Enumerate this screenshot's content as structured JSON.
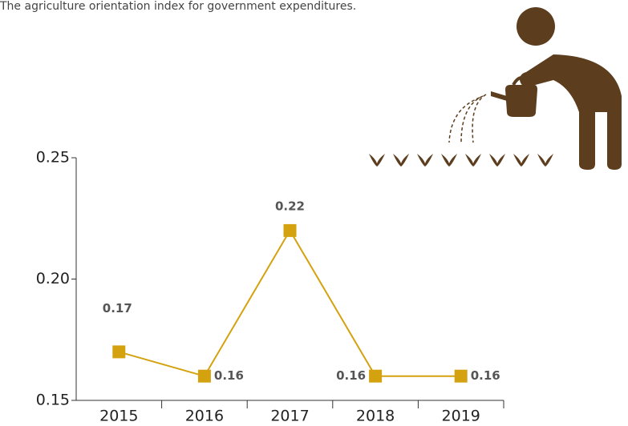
{
  "chart_data": {
    "type": "line",
    "title": "The agriculture orientation index for government expenditures.",
    "categories": [
      "2015",
      "2016",
      "2017",
      "2018",
      "2019"
    ],
    "series": [
      {
        "name": "Agriculture orientation index",
        "color": "#d4a20f",
        "values": [
          0.17,
          0.16,
          0.22,
          0.16,
          0.16
        ]
      }
    ],
    "ylim": [
      0.15,
      0.25
    ],
    "yticks": [
      0.25,
      {
        "value": 0.2,
        "label": "0.20"
      },
      0.15
    ]
  }
}
